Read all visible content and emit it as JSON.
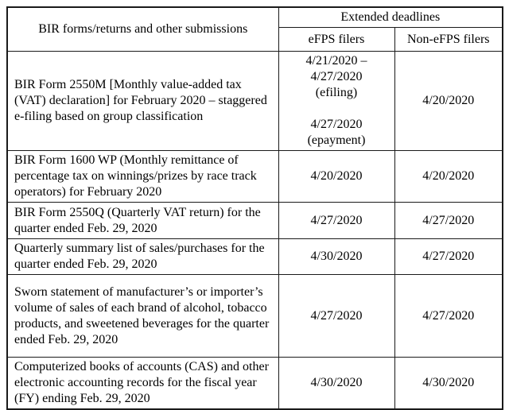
{
  "table": {
    "border_color": "#1a1a1a",
    "background_color": "#ffffff",
    "header": {
      "submissions_label": "BIR forms/returns and other submissions",
      "extended_deadlines_label": "Extended deadlines",
      "efps_label": "eFPS filers",
      "non_efps_label": "Non-eFPS filers"
    },
    "rows": [
      {
        "submission": "BIR Form 2550M [Monthly value-added tax (VAT) declaration] for February 2020 – staggered e-filing based on group classification",
        "efps": "4/21/2020 –\n4/27/2020\n(efiling)\n\n4/27/2020\n(epayment)",
        "non_efps": "4/20/2020"
      },
      {
        "submission": "BIR Form 1600 WP (Monthly remittance of percentage tax on winnings/prizes by race track operators) for February 2020",
        "efps": "4/20/2020",
        "non_efps": "4/20/2020"
      },
      {
        "submission": "BIR Form 2550Q (Quarterly VAT return) for the quarter ended Feb. 29, 2020",
        "efps": "4/27/2020",
        "non_efps": "4/27/2020"
      },
      {
        "submission": "Quarterly summary list of sales/purchases for the quarter ended Feb. 29, 2020",
        "efps": "4/30/2020",
        "non_efps": "4/27/2020"
      },
      {
        "submission": "Sworn statement of manufacturer’s or importer’s volume of sales of each brand of alcohol, tobacco products, and sweetened beverages for the quarter ended Feb. 29, 2020",
        "efps": "4/27/2020",
        "non_efps": "4/27/2020"
      },
      {
        "submission": "Computerized books of accounts (CAS) and other electronic accounting records for the fiscal year (FY) ending Feb. 29, 2020",
        "efps": "4/30/2020",
        "non_efps": "4/30/2020"
      }
    ]
  }
}
